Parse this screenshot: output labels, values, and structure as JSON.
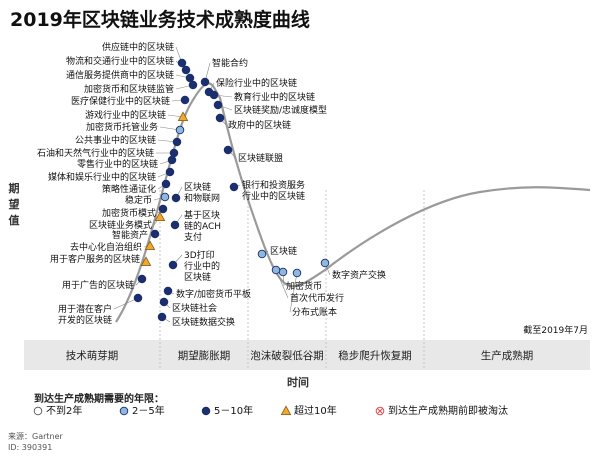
{
  "chart_data": {
    "type": "line",
    "title": "2019年区块链业务技术成熟度曲线",
    "xlabel": "时间",
    "ylabel": "期望值",
    "as_of": "截至2019年7月",
    "phases": [
      "技术萌芽期",
      "期望膨胀期",
      "泡沫破裂低谷期",
      "稳步爬升恢复期",
      "生产成熟期"
    ],
    "legend_title": "到达生产成熟期需要的年限：",
    "legend": [
      {
        "key": "lt2",
        "label": "不到2年",
        "color": "#ffffff"
      },
      {
        "key": "y2to5",
        "label": "2－5年",
        "color": "#8fb8de"
      },
      {
        "key": "y5to10",
        "label": "5－10年",
        "color": "#1a2f6e"
      },
      {
        "key": "gt10",
        "label": "超过10年",
        "color": "#f0a830"
      },
      {
        "key": "obsolete",
        "label": "到达生产成熟期前即被淘汰",
        "color": "#d9534f"
      }
    ],
    "source": "来源：Gartner",
    "id": "ID: 390391",
    "series": [
      {
        "label": "供应链中的区块链",
        "category": "y5to10"
      },
      {
        "label": "物流和交通行业中的区块链",
        "category": "y5to10"
      },
      {
        "label": "通信服务提供商中的区块链",
        "category": "y5to10"
      },
      {
        "label": "加密货币和区块链监管",
        "category": "y5to10"
      },
      {
        "label": "医疗保健行业中的区块链",
        "category": "y5to10"
      },
      {
        "label": "游戏行业中的区块链",
        "category": "gt10"
      },
      {
        "label": "加密货币托管业务",
        "category": "y2to5"
      },
      {
        "label": "公共事业中的区块链",
        "category": "y5to10"
      },
      {
        "label": "石油和天然气行业中的区块链",
        "category": "y5to10"
      },
      {
        "label": "零售行业中的区块链",
        "category": "y5to10"
      },
      {
        "label": "媒体和娱乐行业中的区块链",
        "category": "y5to10"
      },
      {
        "label": "策略性通证化",
        "category": "y5to10"
      },
      {
        "label": "稳定币",
        "category": "y2to5"
      },
      {
        "label": "加密货币模式",
        "category": "y5to10"
      },
      {
        "label": "区块链业务模式",
        "category": "gt10"
      },
      {
        "label": "智能资产",
        "category": "y5to10"
      },
      {
        "label": "去中心化自治组织",
        "category": "gt10"
      },
      {
        "label": "用于客户服务的区块链",
        "category": "gt10"
      },
      {
        "label": "用于广告的区块链",
        "category": "y5to10"
      },
      {
        "label": "用于潜在客户开发的区块链",
        "category": "y5to10"
      },
      {
        "label": "智能合约",
        "category": "y5to10"
      },
      {
        "label": "保险行业中的区块链",
        "category": "y5to10"
      },
      {
        "label": "教育行业中的区块链",
        "category": "y5to10"
      },
      {
        "label": "区块链奖励/忠诚度模型",
        "category": "y5to10"
      },
      {
        "label": "政府中的区块链",
        "category": "y5to10"
      },
      {
        "label": "区块链联盟",
        "category": "y5to10"
      },
      {
        "label": "银行和投资服务行业中的区块链",
        "category": "y5to10"
      },
      {
        "label": "区块链和物联网",
        "category": "y5to10"
      },
      {
        "label": "基于区块链的ACH支付",
        "category": "y5to10"
      },
      {
        "label": "3D打印行业中的区块链",
        "category": "y5to10"
      },
      {
        "label": "数字/加密货币平板",
        "category": "y5to10"
      },
      {
        "label": "区块链社会",
        "category": "y5to10"
      },
      {
        "label": "区块链数据交换",
        "category": "y5to10"
      },
      {
        "label": "区块链",
        "category": "y2to5"
      },
      {
        "label": "加密货币",
        "category": "y2to5"
      },
      {
        "label": "首次代币发行",
        "category": "y2to5"
      },
      {
        "label": "分布式账本",
        "category": "y2to5"
      },
      {
        "label": "数字资产交换",
        "category": "y2to5"
      }
    ]
  }
}
